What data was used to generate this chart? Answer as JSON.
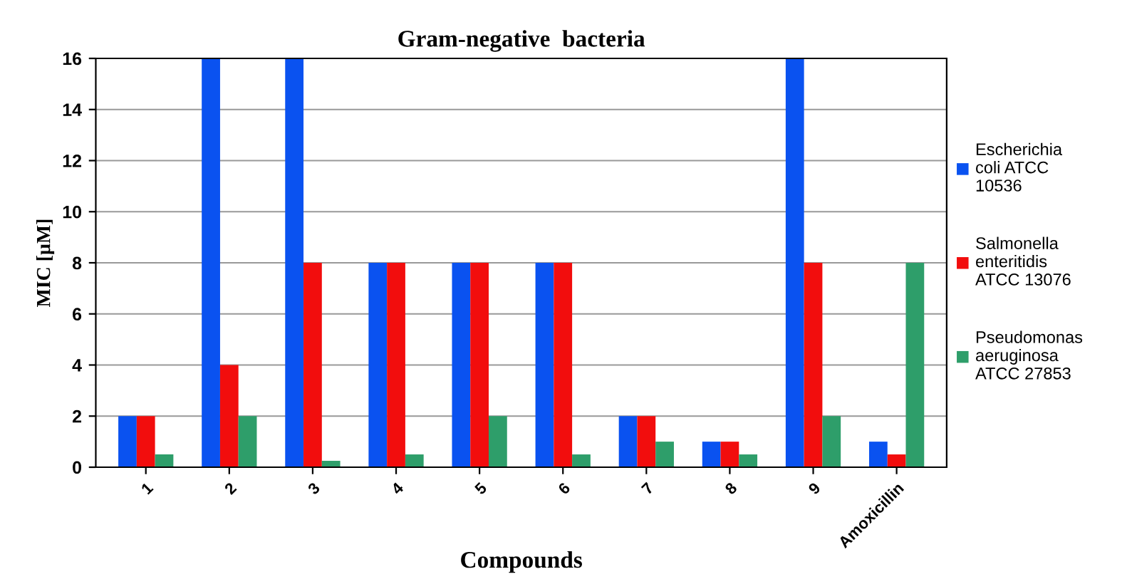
{
  "chart_data": {
    "type": "bar",
    "title": "Gram-negative  bacteria",
    "xlabel": "Compounds",
    "ylabel": "MIC [µM]",
    "categories": [
      "1",
      "2",
      "3",
      "4",
      "5",
      "6",
      "7",
      "8",
      "9",
      "Amoxicillin"
    ],
    "series": [
      {
        "name": "Escherichia coli ATCC 10536",
        "color": "#0a52f0",
        "values": [
          2,
          16,
          16,
          8,
          8,
          8,
          2,
          1,
          16,
          1
        ]
      },
      {
        "name": "Salmonella enteritidis ATCC 13076",
        "color": "#f20d0d",
        "values": [
          2,
          4,
          8,
          8,
          8,
          8,
          2,
          1,
          8,
          0.5
        ]
      },
      {
        "name": "Pseudomonas aeruginosa ATCC 27853",
        "color": "#2e9e6a",
        "values": [
          0.5,
          2,
          0.25,
          0.5,
          2,
          0.5,
          1,
          0.5,
          2,
          8
        ]
      }
    ],
    "ylim": [
      0,
      16
    ],
    "yticks": [
      0,
      2,
      4,
      6,
      8,
      10,
      12,
      14,
      16
    ],
    "grid": "y",
    "legend": "right"
  }
}
